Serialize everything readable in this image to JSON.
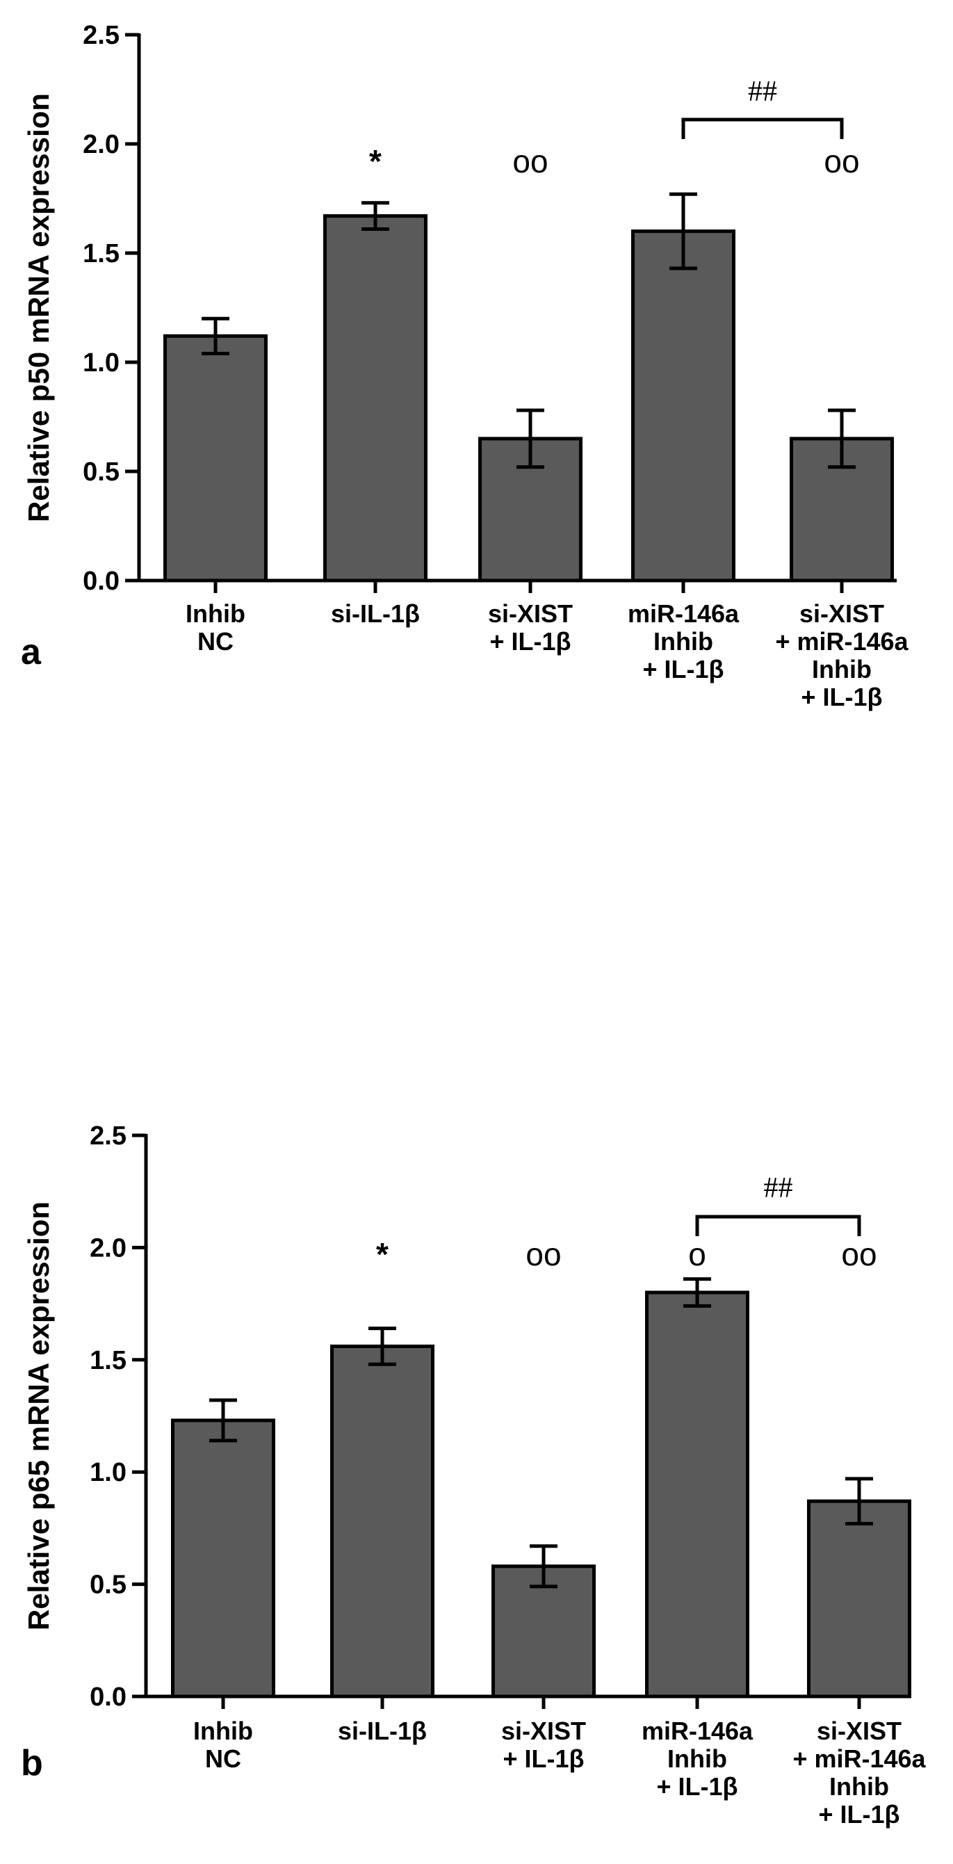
{
  "chart_data": [
    {
      "panel": "a",
      "type": "bar",
      "ylabel": "Relative p50 mRNA expression",
      "xlabel": "",
      "ylim": [
        0,
        2.5
      ],
      "yticks": [
        "0.0",
        "0.5",
        "1.0",
        "1.5",
        "2.0",
        "2.5"
      ],
      "categories": [
        [
          "Inhib",
          "NC"
        ],
        [
          "si-IL-1β"
        ],
        [
          "si-XIST",
          "+ IL-1β"
        ],
        [
          "miR-146a",
          "Inhib",
          "+ IL-1β"
        ],
        [
          "si-XIST",
          "+ miR-146a",
          "Inhib",
          "+ IL-1β"
        ]
      ],
      "values": [
        1.12,
        1.67,
        0.65,
        1.6,
        0.65
      ],
      "errors": [
        0.08,
        0.06,
        0.13,
        0.17,
        0.13
      ],
      "annotations": [
        "",
        "*",
        "oo",
        "",
        "oo"
      ],
      "bracket": {
        "from": 3,
        "to": 4,
        "label": "##"
      },
      "bar_color": "#5a5a5a"
    },
    {
      "panel": "b",
      "type": "bar",
      "ylabel": "Relative p65 mRNA expression",
      "xlabel": "",
      "ylim": [
        0,
        2.5
      ],
      "yticks": [
        "0.0",
        "0.5",
        "1.0",
        "1.5",
        "2.0",
        "2.5"
      ],
      "categories": [
        [
          "Inhib",
          "NC"
        ],
        [
          "si-IL-1β"
        ],
        [
          "si-XIST",
          "+ IL-1β"
        ],
        [
          "miR-146a",
          "Inhib",
          "+ IL-1β"
        ],
        [
          "si-XIST",
          "+ miR-146a",
          "Inhib",
          "+ IL-1β"
        ]
      ],
      "values": [
        1.23,
        1.56,
        0.58,
        1.8,
        0.87
      ],
      "errors": [
        0.09,
        0.08,
        0.09,
        0.06,
        0.1
      ],
      "annotations": [
        "",
        "*",
        "oo",
        "o",
        "oo"
      ],
      "bracket": {
        "from": 3,
        "to": 4,
        "label": "##"
      },
      "bar_color": "#5a5a5a"
    }
  ]
}
